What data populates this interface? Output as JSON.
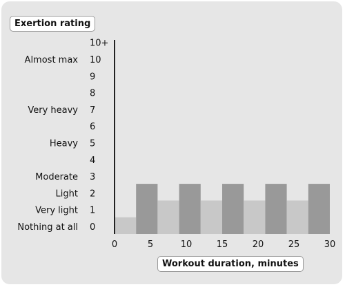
{
  "chart_data": {
    "type": "bar",
    "ylabel": "Exertion rating",
    "xlabel": "Workout duration, minutes",
    "x_ticks": [
      0,
      5,
      10,
      15,
      20,
      25,
      30
    ],
    "xlim": [
      0,
      30
    ],
    "y_ticks": [
      {
        "value": 0,
        "number": "0",
        "label": "Nothing at all"
      },
      {
        "value": 1,
        "number": "1",
        "label": "Very light"
      },
      {
        "value": 2,
        "number": "2",
        "label": "Light"
      },
      {
        "value": 3,
        "number": "3",
        "label": "Moderate"
      },
      {
        "value": 4,
        "number": "4",
        "label": ""
      },
      {
        "value": 5,
        "number": "5",
        "label": "Heavy"
      },
      {
        "value": 6,
        "number": "6",
        "label": ""
      },
      {
        "value": 7,
        "number": "7",
        "label": "Very heavy"
      },
      {
        "value": 8,
        "number": "8",
        "label": ""
      },
      {
        "value": 9,
        "number": "9",
        "label": ""
      },
      {
        "value": 10,
        "number": "10",
        "label": "Almost max"
      },
      {
        "value": 11,
        "number": "10+",
        "label": ""
      }
    ],
    "ylim": [
      0,
      11
    ],
    "bars": [
      {
        "start": 0,
        "end": 3,
        "value": 1,
        "color": "#c8c8c8"
      },
      {
        "start": 3,
        "end": 6,
        "value": 3,
        "color": "#999999"
      },
      {
        "start": 6,
        "end": 9,
        "value": 2,
        "color": "#c8c8c8"
      },
      {
        "start": 9,
        "end": 12,
        "value": 3,
        "color": "#999999"
      },
      {
        "start": 12,
        "end": 15,
        "value": 2,
        "color": "#c8c8c8"
      },
      {
        "start": 15,
        "end": 18,
        "value": 3,
        "color": "#999999"
      },
      {
        "start": 18,
        "end": 21,
        "value": 2,
        "color": "#c8c8c8"
      },
      {
        "start": 21,
        "end": 24,
        "value": 3,
        "color": "#999999"
      },
      {
        "start": 24,
        "end": 27,
        "value": 2,
        "color": "#c8c8c8"
      },
      {
        "start": 27,
        "end": 30,
        "value": 3,
        "color": "#999999"
      }
    ],
    "colors": {
      "panel": "#e6e6e6",
      "light_bar": "#c8c8c8",
      "dark_bar": "#999999",
      "axis": "#222222"
    }
  }
}
